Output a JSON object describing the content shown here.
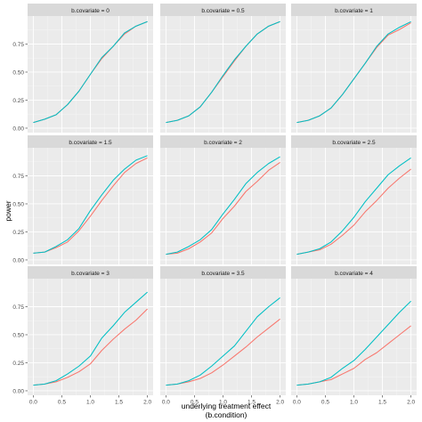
{
  "chart_data": {
    "type": "line",
    "xlabel": "underlying treatment effect",
    "xlabel_line2": "(b.condition)",
    "ylabel": "power",
    "xlim": [
      0,
      2
    ],
    "ylim": [
      0,
      1
    ],
    "x_ticks": [
      "0.0",
      "0.5",
      "1.0",
      "1.5",
      "2.0"
    ],
    "y_ticks": [
      "0.00",
      "0.25",
      "0.50",
      "0.75"
    ],
    "x": [
      0,
      0.2,
      0.4,
      0.6,
      0.8,
      1.0,
      1.2,
      1.4,
      1.6,
      1.8,
      2.0
    ],
    "grid": true,
    "legend": "none",
    "series_colors": [
      "#f8766d",
      "#00bfc4"
    ],
    "panels": [
      {
        "strip": "b.covariate = 0",
        "series": [
          {
            "values": [
              0.05,
              0.08,
              0.12,
              0.21,
              0.33,
              0.48,
              0.62,
              0.73,
              0.84,
              0.91,
              0.95
            ]
          },
          {
            "values": [
              0.05,
              0.08,
              0.12,
              0.21,
              0.33,
              0.48,
              0.63,
              0.73,
              0.85,
              0.91,
              0.95
            ]
          }
        ]
      },
      {
        "strip": "b.covariate = 0.5",
        "series": [
          {
            "values": [
              0.05,
              0.07,
              0.11,
              0.19,
              0.32,
              0.46,
              0.6,
              0.73,
              0.84,
              0.91,
              0.95
            ]
          },
          {
            "values": [
              0.05,
              0.07,
              0.11,
              0.19,
              0.32,
              0.47,
              0.61,
              0.73,
              0.84,
              0.91,
              0.95
            ]
          }
        ]
      },
      {
        "strip": "b.covariate = 1",
        "series": [
          {
            "values": [
              0.05,
              0.07,
              0.11,
              0.18,
              0.3,
              0.44,
              0.58,
              0.72,
              0.83,
              0.88,
              0.94
            ]
          },
          {
            "values": [
              0.05,
              0.07,
              0.11,
              0.18,
              0.3,
              0.44,
              0.58,
              0.73,
              0.84,
              0.9,
              0.95
            ]
          }
        ]
      },
      {
        "strip": "b.covariate = 1.5",
        "series": [
          {
            "values": [
              0.06,
              0.07,
              0.11,
              0.16,
              0.26,
              0.39,
              0.53,
              0.66,
              0.78,
              0.86,
              0.91
            ]
          },
          {
            "values": [
              0.06,
              0.07,
              0.12,
              0.18,
              0.28,
              0.44,
              0.58,
              0.71,
              0.81,
              0.89,
              0.93
            ]
          }
        ]
      },
      {
        "strip": "b.covariate = 2",
        "series": [
          {
            "values": [
              0.05,
              0.06,
              0.1,
              0.16,
              0.24,
              0.37,
              0.48,
              0.61,
              0.7,
              0.8,
              0.87
            ]
          },
          {
            "values": [
              0.05,
              0.07,
              0.12,
              0.18,
              0.27,
              0.41,
              0.54,
              0.68,
              0.78,
              0.86,
              0.92
            ]
          }
        ]
      },
      {
        "strip": "b.covariate = 2.5",
        "series": [
          {
            "values": [
              0.05,
              0.07,
              0.09,
              0.14,
              0.22,
              0.31,
              0.43,
              0.53,
              0.64,
              0.73,
              0.81
            ]
          },
          {
            "values": [
              0.05,
              0.07,
              0.1,
              0.16,
              0.26,
              0.38,
              0.52,
              0.64,
              0.76,
              0.84,
              0.91
            ]
          }
        ]
      },
      {
        "strip": "b.covariate = 3",
        "series": [
          {
            "values": [
              0.05,
              0.06,
              0.08,
              0.12,
              0.17,
              0.24,
              0.36,
              0.46,
              0.55,
              0.63,
              0.73
            ]
          },
          {
            "values": [
              0.05,
              0.06,
              0.09,
              0.15,
              0.22,
              0.31,
              0.47,
              0.58,
              0.7,
              0.79,
              0.88
            ]
          }
        ]
      },
      {
        "strip": "b.covariate = 3.5",
        "series": [
          {
            "values": [
              0.05,
              0.06,
              0.08,
              0.11,
              0.16,
              0.23,
              0.31,
              0.39,
              0.48,
              0.56,
              0.64
            ]
          },
          {
            "values": [
              0.05,
              0.06,
              0.09,
              0.14,
              0.22,
              0.31,
              0.4,
              0.53,
              0.66,
              0.75,
              0.83
            ]
          }
        ]
      },
      {
        "strip": "b.covariate = 4",
        "series": [
          {
            "values": [
              0.05,
              0.06,
              0.08,
              0.1,
              0.15,
              0.2,
              0.28,
              0.34,
              0.42,
              0.5,
              0.58
            ]
          },
          {
            "values": [
              0.05,
              0.06,
              0.08,
              0.12,
              0.2,
              0.27,
              0.37,
              0.48,
              0.59,
              0.7,
              0.8
            ]
          }
        ]
      }
    ]
  }
}
